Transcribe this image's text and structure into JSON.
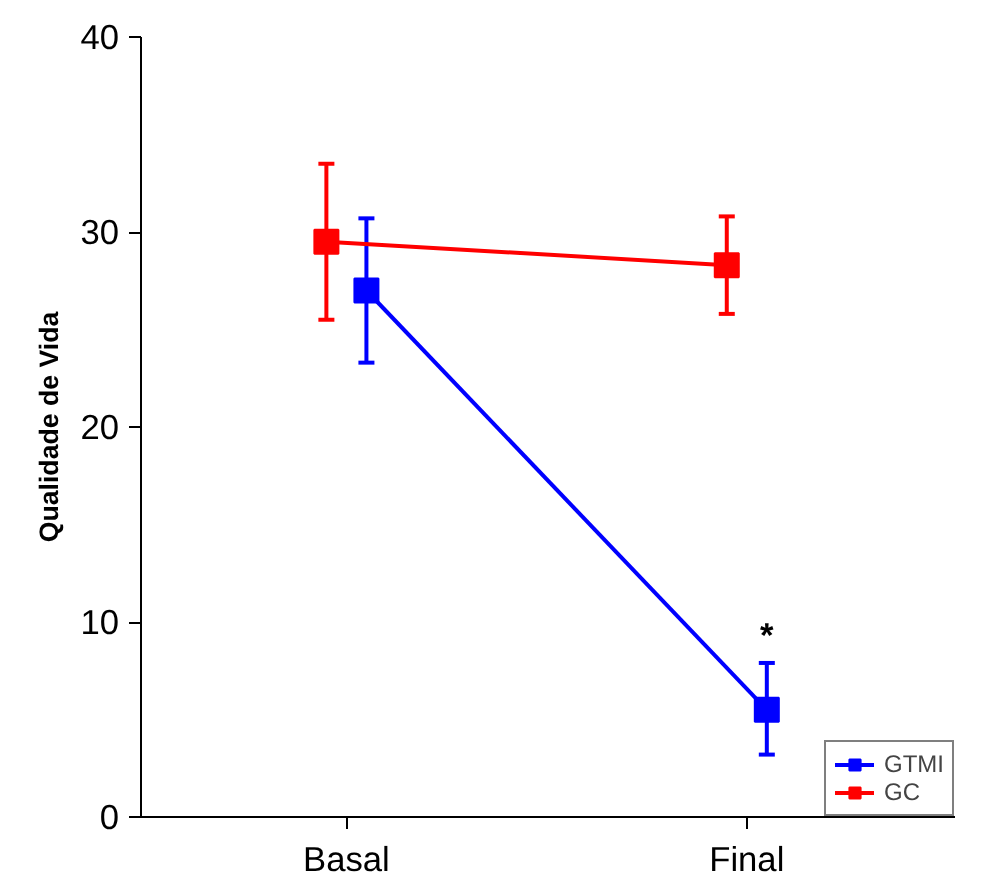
{
  "chart_data": {
    "type": "line",
    "ylabel": "Qualidade de Vida",
    "categories": [
      "Basal",
      "Final"
    ],
    "ylim": [
      0,
      40
    ],
    "yticks": [
      0,
      10,
      20,
      30,
      40
    ],
    "grid": false,
    "legend": "bottom right",
    "marker": "square",
    "line_style": "solid",
    "series": [
      {
        "name": "GTMI",
        "color": "#0000ff",
        "values": [
          27.0,
          5.5
        ],
        "errors": [
          [
            23.3,
            30.7
          ],
          [
            3.2,
            7.9
          ]
        ]
      },
      {
        "name": "GC",
        "color": "#ff0000",
        "values": [
          29.5,
          28.3
        ],
        "errors": [
          [
            25.5,
            33.5
          ],
          [
            25.8,
            30.8
          ]
        ]
      }
    ],
    "annotations": [
      "*"
    ]
  }
}
